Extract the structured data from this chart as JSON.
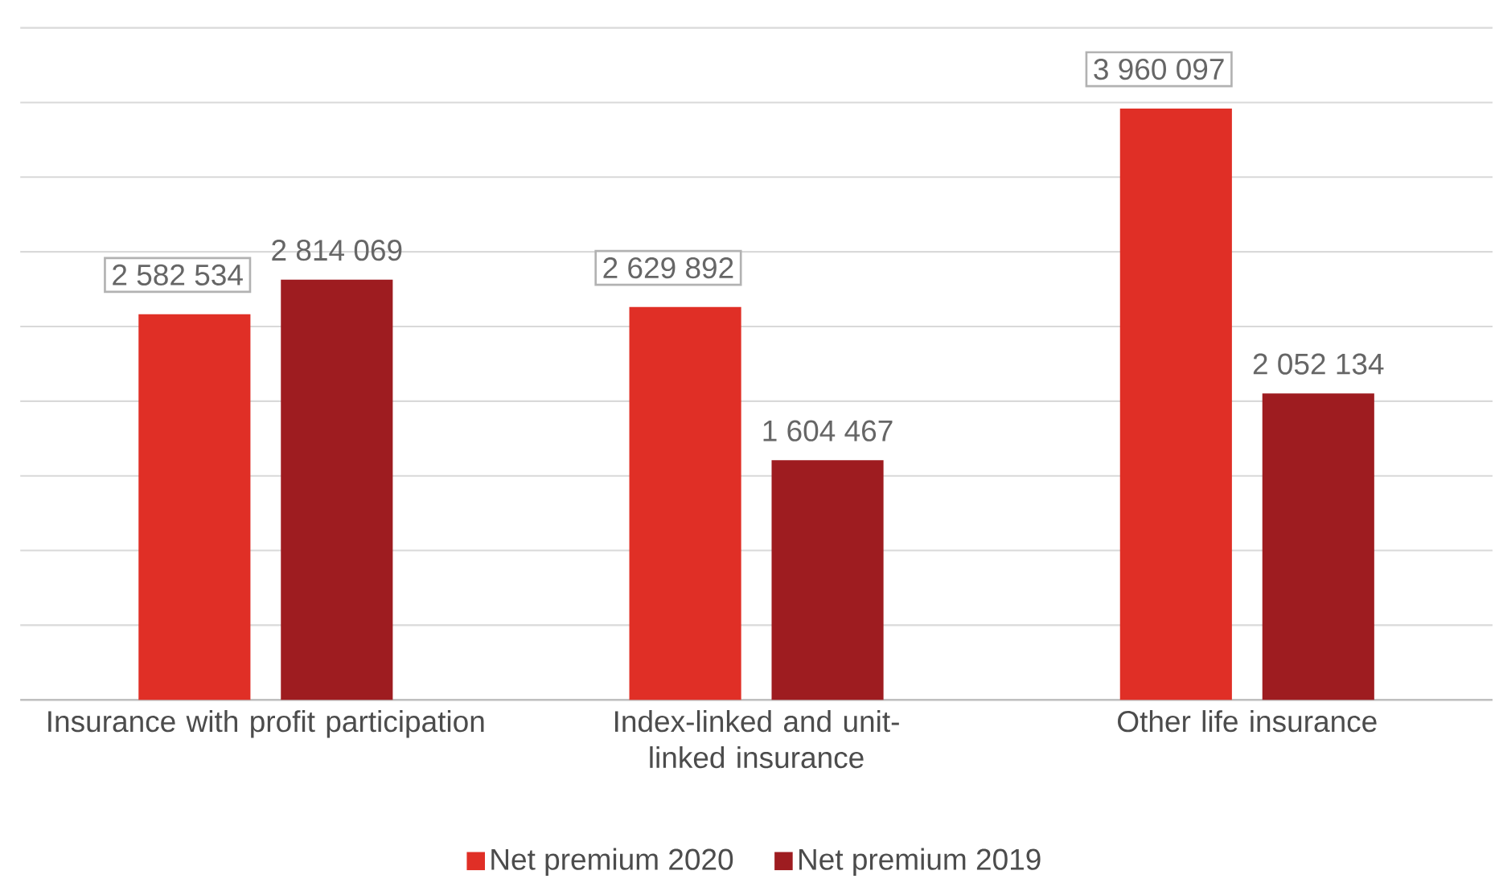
{
  "chart_data": {
    "type": "bar",
    "categories": [
      "Insurance with profit participation",
      "Index-linked and unit-linked insurance",
      "Other life insurance"
    ],
    "series": [
      {
        "name": "Net premium 2020",
        "color": "#e02f26",
        "values": [
          2582534,
          2629892,
          3960097
        ],
        "value_labels": [
          "2 582 534",
          "2 629 892",
          "3 960 097"
        ]
      },
      {
        "name": "Net premium 2019",
        "color": "#9e1c20",
        "values": [
          2814069,
          1604467,
          2052134
        ],
        "value_labels": [
          "2 814 069",
          "1 604 467",
          "2 052 134"
        ]
      }
    ],
    "ylim": [
      0,
      4500000
    ],
    "yticks": [
      {
        "value": 0,
        "label": null
      },
      {
        "value": 500000,
        "label": null
      },
      {
        "value": 1000000,
        "label": null
      },
      {
        "value": 1500000,
        "label": null
      },
      {
        "value": 2000000,
        "label": null
      },
      {
        "value": 2500000,
        "label": null
      },
      {
        "value": 3000000,
        "label": null
      },
      {
        "value": 3500000,
        "label": null
      },
      {
        "value": 4000000,
        "label": null
      },
      {
        "value": 4500000,
        "label": null
      }
    ],
    "tick_labels": "x",
    "grid": "y",
    "legend": "bottom"
  }
}
